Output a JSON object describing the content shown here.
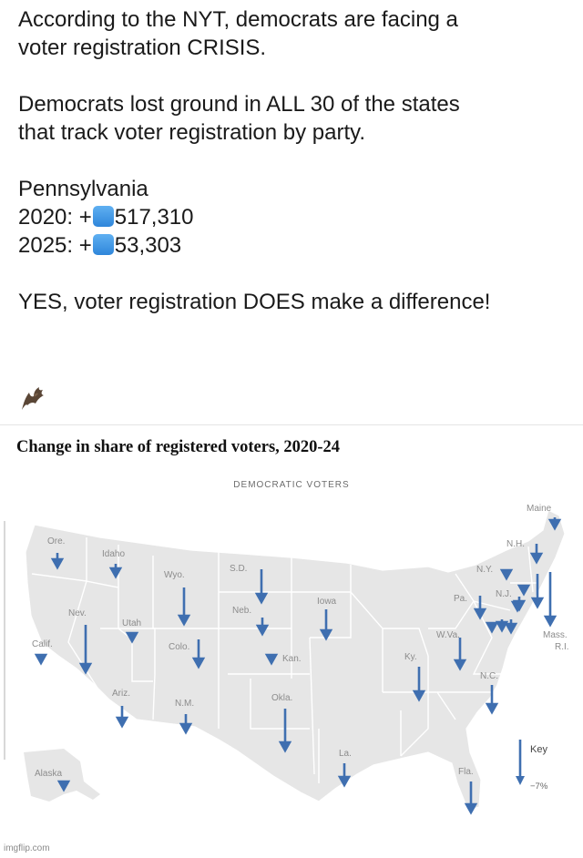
{
  "post": {
    "line1": "According to the NYT, democrats are facing a",
    "line2": "voter registration CRISIS.",
    "line3": "Democrats lost ground in ALL 30 of the states",
    "line4": "that track voter registration by party.",
    "state": "Pennsylvania",
    "row_2020_prefix": "2020: +",
    "row_2020_value": "517,310",
    "row_2025_prefix": "2025: +",
    "row_2025_value": "53,303",
    "closing": "YES, voter registration DOES make a difference!",
    "emoji_icon": "bat-icon",
    "square_icon": "blue-square-icon",
    "square_color": "#3a8fe0"
  },
  "map": {
    "title": "Change in share of registered voters, 2020-24",
    "subtitle": "DEMOCRATIC VOTERS",
    "arrow_color": "#3f6fb0",
    "land_color": "#e6e6e6",
    "key_title": "Key",
    "key_value": "−7%",
    "key_value_pct": -7,
    "states": [
      {
        "name": "Ore."
      },
      {
        "name": "Idaho"
      },
      {
        "name": "Wyo."
      },
      {
        "name": "S.D."
      },
      {
        "name": "Maine"
      },
      {
        "name": "N.H."
      },
      {
        "name": "N.Y."
      },
      {
        "name": "N.J."
      },
      {
        "name": "Pa."
      },
      {
        "name": "Neb."
      },
      {
        "name": "Iowa"
      },
      {
        "name": "Nev."
      },
      {
        "name": "Utah"
      },
      {
        "name": "Calif."
      },
      {
        "name": "Colo."
      },
      {
        "name": "Kan."
      },
      {
        "name": "W.Va."
      },
      {
        "name": "Mass."
      },
      {
        "name": "R.I."
      },
      {
        "name": "Ky."
      },
      {
        "name": "Ariz."
      },
      {
        "name": "N.M."
      },
      {
        "name": "Okla."
      },
      {
        "name": "N.C."
      },
      {
        "name": "La."
      },
      {
        "name": "Fla."
      },
      {
        "name": "Alaska"
      }
    ]
  },
  "watermark": "imgflip.com"
}
